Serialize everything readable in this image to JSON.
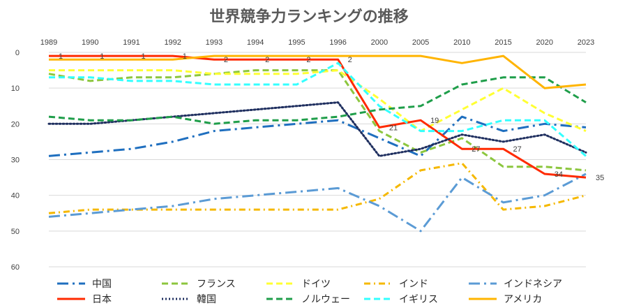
{
  "chart_data": {
    "type": "line",
    "title": "世界競争力ランキングの推移",
    "categories": [
      "1989",
      "1990",
      "1991",
      "1992",
      "1993",
      "1994",
      "1995",
      "1996",
      "2000",
      "2005",
      "2010",
      "2015",
      "2020",
      "2023"
    ],
    "ylim": [
      0,
      60
    ],
    "y_inverted": true,
    "y_ticks": [
      0,
      10,
      20,
      30,
      40,
      50,
      60
    ],
    "legend_position": "bottom",
    "series": [
      {
        "name": "中国",
        "color": "#1f6fbf",
        "dash": "longdashdot",
        "values": [
          29,
          28,
          27,
          25,
          22,
          21,
          20,
          19,
          24,
          29,
          18,
          22,
          20,
          21
        ]
      },
      {
        "name": "フランス",
        "color": "#8cc63e",
        "dash": "dash",
        "values": [
          6,
          8,
          7,
          7,
          6,
          5,
          5,
          5,
          22,
          28,
          24,
          32,
          32,
          33
        ]
      },
      {
        "name": "ドイツ",
        "color": "#ffff33",
        "dash": "dash",
        "values": [
          5,
          5,
          5,
          5,
          6,
          6,
          6,
          5,
          13,
          22,
          16,
          10,
          17,
          22
        ]
      },
      {
        "name": "インド",
        "color": "#f5b800",
        "dash": "dashdot",
        "values": [
          45,
          44,
          44,
          44,
          44,
          44,
          44,
          44,
          41,
          33,
          31,
          44,
          43,
          40
        ]
      },
      {
        "name": "インドネシア",
        "color": "#5b9bd5",
        "dash": "longdashdot",
        "values": [
          46,
          45,
          44,
          43,
          41,
          40,
          39,
          38,
          43,
          50,
          35,
          42,
          40,
          34
        ]
      },
      {
        "name": "日本",
        "color": "#ff2a00",
        "dash": "solid",
        "values": [
          1,
          1,
          1,
          1,
          2,
          2,
          2,
          2,
          21,
          19,
          27,
          27,
          34,
          35
        ]
      },
      {
        "name": "韓国",
        "color": "#1f2f5f",
        "dash": "dot",
        "values": [
          20,
          20,
          19,
          18,
          17,
          16,
          15,
          14,
          29,
          27,
          23,
          25,
          23,
          28
        ]
      },
      {
        "name": "ノルウェー",
        "color": "#1f9e4a",
        "dash": "dash",
        "values": [
          18,
          19,
          19,
          18,
          20,
          19,
          19,
          18,
          16,
          15,
          9,
          7,
          7,
          14
        ]
      },
      {
        "name": "イギリス",
        "color": "#33ffff",
        "dash": "dash",
        "values": [
          7,
          7,
          8,
          8,
          9,
          9,
          9,
          3,
          15,
          22,
          22,
          19,
          19,
          29
        ]
      },
      {
        "name": "アメリカ",
        "color": "#ffb400",
        "dash": "solid",
        "values": [
          2,
          2,
          2,
          2,
          1,
          1,
          1,
          1,
          1,
          1,
          3,
          1,
          10,
          9
        ]
      }
    ],
    "japan_labels": [
      "1",
      "1",
      "1",
      "1",
      "2",
      "2",
      "2",
      "2",
      "21",
      "19",
      "27",
      "27",
      "34",
      "35"
    ]
  }
}
